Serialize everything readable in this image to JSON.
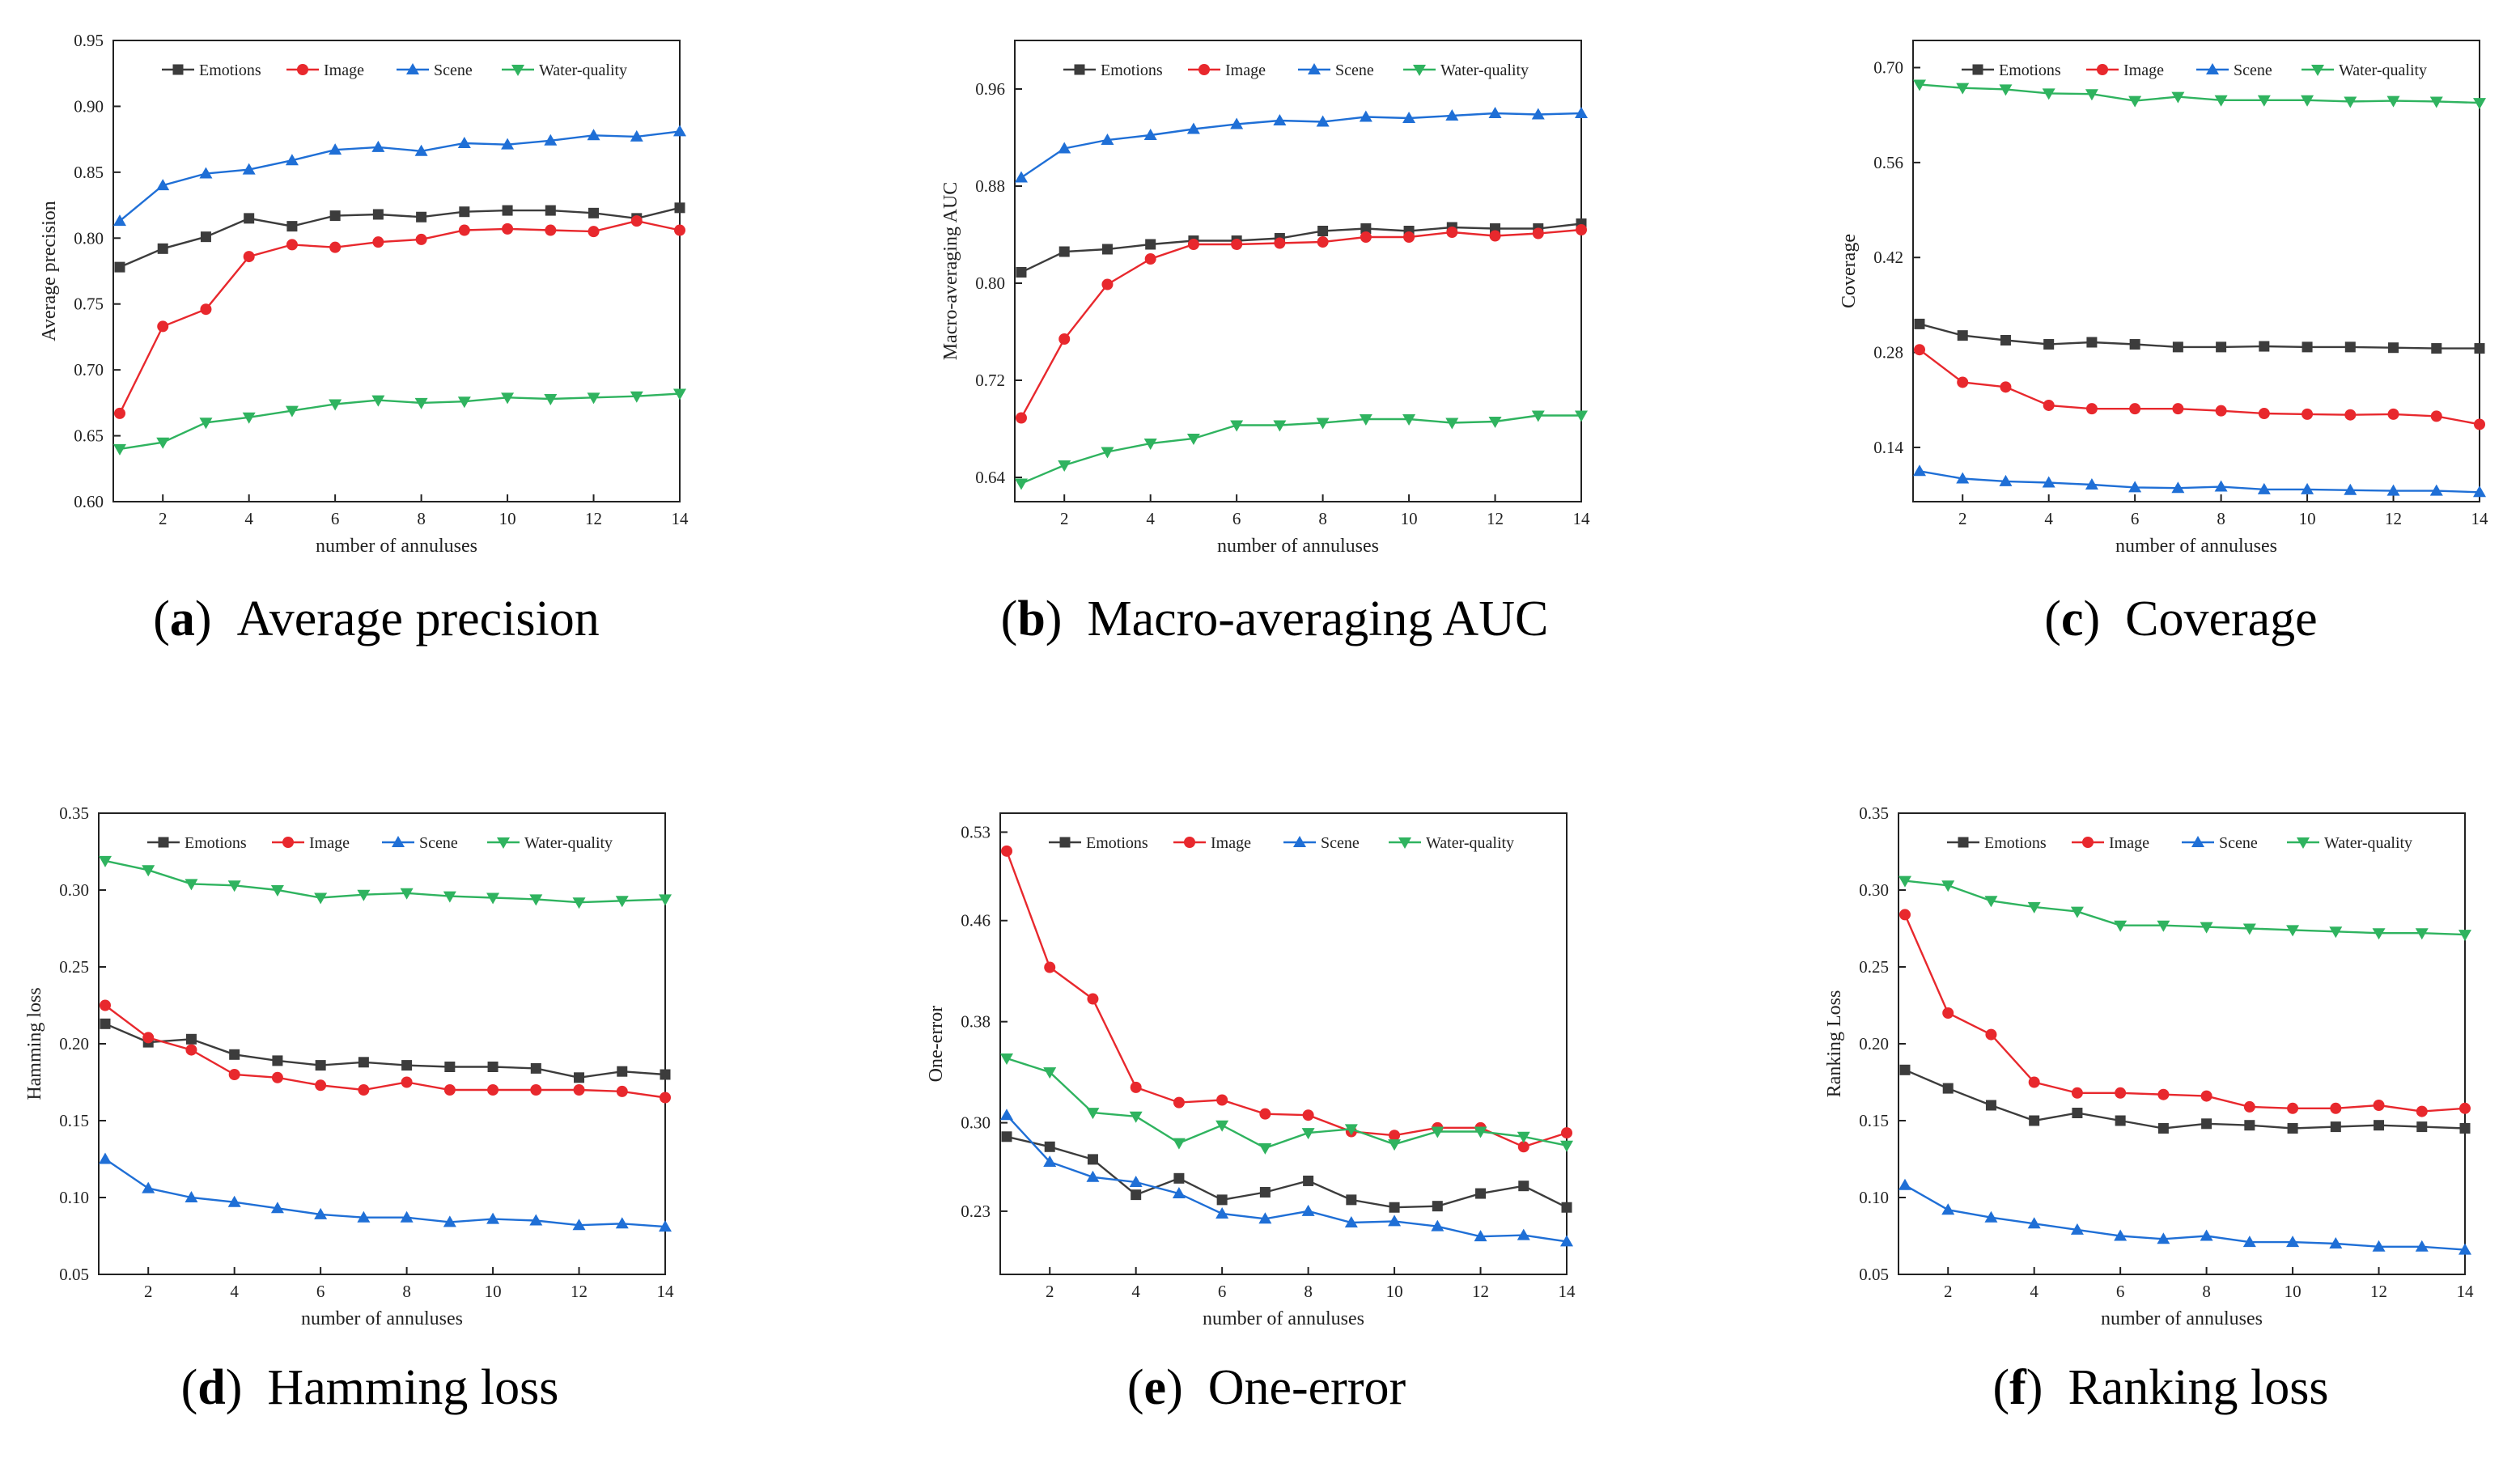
{
  "figure": {
    "series_colors": {
      "Emotions": "#3c3c3c",
      "Image": "#e8282d",
      "Scene": "#1f6fd6",
      "Water-quality": "#2fb35f"
    }
  },
  "chart_data": [
    {
      "type": "line",
      "caption_letter": "a",
      "caption_text": "Average precision",
      "xlabel": "number of annuluses",
      "ylabel": "Average precision",
      "x": [
        1,
        2,
        3,
        4,
        5,
        6,
        7,
        8,
        9,
        10,
        11,
        12,
        13,
        14
      ],
      "xlim": [
        0.85,
        14
      ],
      "xticks": [
        2,
        4,
        6,
        8,
        10,
        12,
        14
      ],
      "ylim": [
        0.6,
        0.95
      ],
      "yticks": [
        0.6,
        0.65,
        0.7,
        0.75,
        0.8,
        0.85,
        0.9,
        0.95
      ],
      "ytick_labels": [
        "0.60",
        "0.65",
        "0.70",
        "0.75",
        "0.80",
        "0.85",
        "0.90",
        "0.95"
      ],
      "series": [
        {
          "name": "Emotions",
          "values": [
            0.778,
            0.792,
            0.801,
            0.815,
            0.809,
            0.817,
            0.818,
            0.816,
            0.82,
            0.821,
            0.821,
            0.819,
            0.815,
            0.823
          ]
        },
        {
          "name": "Image",
          "values": [
            0.667,
            0.733,
            0.746,
            0.786,
            0.795,
            0.793,
            0.797,
            0.799,
            0.806,
            0.807,
            0.806,
            0.805,
            0.813,
            0.806
          ]
        },
        {
          "name": "Scene",
          "values": [
            0.813,
            0.84,
            0.849,
            0.852,
            0.859,
            0.867,
            0.869,
            0.866,
            0.872,
            0.871,
            0.874,
            0.878,
            0.877,
            0.881
          ]
        },
        {
          "name": "Water-quality",
          "values": [
            0.64,
            0.645,
            0.66,
            0.664,
            0.669,
            0.674,
            0.677,
            0.675,
            0.676,
            0.679,
            0.678,
            0.679,
            0.68,
            0.682
          ]
        }
      ]
    },
    {
      "type": "line",
      "caption_letter": "b",
      "caption_text": "Macro-averaging AUC",
      "xlabel": "number of annuluses",
      "ylabel": "Macro-averaging AUC",
      "x": [
        1,
        2,
        3,
        4,
        5,
        6,
        7,
        8,
        9,
        10,
        11,
        12,
        13,
        14
      ],
      "xlim": [
        0.85,
        14
      ],
      "xticks": [
        2,
        4,
        6,
        8,
        10,
        12,
        14
      ],
      "ylim": [
        0.62,
        1.0
      ],
      "yticks": [
        0.64,
        0.72,
        0.8,
        0.88,
        0.96
      ],
      "ytick_labels": [
        "0.64",
        "0.72",
        "0.80",
        "0.88",
        "0.96"
      ],
      "series": [
        {
          "name": "Emotions",
          "values": [
            0.809,
            0.826,
            0.828,
            0.832,
            0.835,
            0.835,
            0.837,
            0.843,
            0.845,
            0.843,
            0.846,
            0.845,
            0.845,
            0.849
          ]
        },
        {
          "name": "Image",
          "values": [
            0.689,
            0.754,
            0.799,
            0.82,
            0.832,
            0.832,
            0.833,
            0.834,
            0.838,
            0.838,
            0.842,
            0.839,
            0.841,
            0.844
          ]
        },
        {
          "name": "Scene",
          "values": [
            0.887,
            0.911,
            0.918,
            0.922,
            0.927,
            0.931,
            0.934,
            0.933,
            0.937,
            0.936,
            0.938,
            0.94,
            0.939,
            0.94
          ]
        },
        {
          "name": "Water-quality",
          "values": [
            0.635,
            0.65,
            0.661,
            0.668,
            0.672,
            0.683,
            0.683,
            0.685,
            0.688,
            0.688,
            0.685,
            0.686,
            0.691,
            0.691
          ]
        }
      ]
    },
    {
      "type": "line",
      "caption_letter": "c",
      "caption_text": "Coverage",
      "xlabel": "number of annuluses",
      "ylabel": "Coverage",
      "x": [
        1,
        2,
        3,
        4,
        5,
        6,
        7,
        8,
        9,
        10,
        11,
        12,
        13,
        14
      ],
      "xlim": [
        0.85,
        14
      ],
      "xticks": [
        2,
        4,
        6,
        8,
        10,
        12,
        14
      ],
      "ylim": [
        0.06,
        0.74
      ],
      "yticks": [
        0.14,
        0.28,
        0.42,
        0.56,
        0.7
      ],
      "ytick_labels": [
        "0.14",
        "0.28",
        "0.42",
        "0.56",
        "0.70"
      ],
      "series": [
        {
          "name": "Emotions",
          "values": [
            0.322,
            0.305,
            0.298,
            0.292,
            0.295,
            0.292,
            0.288,
            0.288,
            0.289,
            0.288,
            0.288,
            0.287,
            0.286,
            0.286
          ]
        },
        {
          "name": "Image",
          "values": [
            0.284,
            0.236,
            0.229,
            0.202,
            0.197,
            0.197,
            0.197,
            0.194,
            0.19,
            0.189,
            0.188,
            0.189,
            0.186,
            0.174
          ]
        },
        {
          "name": "Scene",
          "values": [
            0.105,
            0.094,
            0.09,
            0.088,
            0.085,
            0.081,
            0.08,
            0.082,
            0.078,
            0.078,
            0.077,
            0.076,
            0.076,
            0.074
          ]
        },
        {
          "name": "Water-quality",
          "values": [
            0.675,
            0.67,
            0.668,
            0.662,
            0.661,
            0.651,
            0.657,
            0.652,
            0.652,
            0.652,
            0.65,
            0.651,
            0.65,
            0.648
          ]
        }
      ]
    },
    {
      "type": "line",
      "caption_letter": "d",
      "caption_text": "Hamming loss",
      "xlabel": "number of annuluses",
      "ylabel": "Hamming loss",
      "x": [
        1,
        2,
        3,
        4,
        5,
        6,
        7,
        8,
        9,
        10,
        11,
        12,
        13,
        14
      ],
      "xlim": [
        0.85,
        14
      ],
      "xticks": [
        2,
        4,
        6,
        8,
        10,
        12,
        14
      ],
      "ylim": [
        0.05,
        0.35
      ],
      "yticks": [
        0.05,
        0.1,
        0.15,
        0.2,
        0.25,
        0.3,
        0.35
      ],
      "ytick_labels": [
        "0.05",
        "0.10",
        "0.15",
        "0.20",
        "0.25",
        "0.30",
        "0.35"
      ],
      "series": [
        {
          "name": "Emotions",
          "values": [
            0.213,
            0.201,
            0.203,
            0.193,
            0.189,
            0.186,
            0.188,
            0.186,
            0.185,
            0.185,
            0.184,
            0.178,
            0.182,
            0.18
          ]
        },
        {
          "name": "Image",
          "values": [
            0.225,
            0.204,
            0.196,
            0.18,
            0.178,
            0.173,
            0.17,
            0.175,
            0.17,
            0.17,
            0.17,
            0.17,
            0.169,
            0.165
          ]
        },
        {
          "name": "Scene",
          "values": [
            0.125,
            0.106,
            0.1,
            0.097,
            0.093,
            0.089,
            0.087,
            0.087,
            0.084,
            0.086,
            0.085,
            0.082,
            0.083,
            0.081
          ]
        },
        {
          "name": "Water-quality",
          "values": [
            0.319,
            0.313,
            0.304,
            0.303,
            0.3,
            0.295,
            0.297,
            0.298,
            0.296,
            0.295,
            0.294,
            0.292,
            0.293,
            0.294
          ]
        }
      ]
    },
    {
      "type": "line",
      "caption_letter": "e",
      "caption_text": "One-error",
      "xlabel": "number of annuluses",
      "ylabel": "One-error",
      "x": [
        1,
        2,
        3,
        4,
        5,
        6,
        7,
        8,
        9,
        10,
        11,
        12,
        13,
        14
      ],
      "xlim": [
        0.85,
        14
      ],
      "xticks": [
        2,
        4,
        6,
        8,
        10,
        12,
        14
      ],
      "ylim": [
        0.18,
        0.545
      ],
      "yticks": [
        0.23,
        0.3,
        0.38,
        0.46,
        0.53
      ],
      "ytick_labels": [
        "0.23",
        "0.30",
        "0.38",
        "0.46",
        "0.53"
      ],
      "series": [
        {
          "name": "Emotions",
          "values": [
            0.289,
            0.281,
            0.271,
            0.243,
            0.256,
            0.239,
            0.245,
            0.254,
            0.239,
            0.233,
            0.234,
            0.244,
            0.25,
            0.233
          ]
        },
        {
          "name": "Image",
          "values": [
            0.515,
            0.423,
            0.398,
            0.328,
            0.316,
            0.318,
            0.307,
            0.306,
            0.293,
            0.29,
            0.296,
            0.296,
            0.281,
            0.292
          ]
        },
        {
          "name": "Scene",
          "values": [
            0.306,
            0.269,
            0.257,
            0.253,
            0.244,
            0.228,
            0.224,
            0.23,
            0.221,
            0.222,
            0.218,
            0.21,
            0.211,
            0.206
          ]
        },
        {
          "name": "Water-quality",
          "values": [
            0.351,
            0.34,
            0.308,
            0.305,
            0.284,
            0.298,
            0.28,
            0.292,
            0.295,
            0.283,
            0.293,
            0.293,
            0.289,
            0.282
          ]
        }
      ]
    },
    {
      "type": "line",
      "caption_letter": "f",
      "caption_text": "Ranking loss",
      "xlabel": "number of annuluses",
      "ylabel": "Ranking Loss",
      "x": [
        1,
        2,
        3,
        4,
        5,
        6,
        7,
        8,
        9,
        10,
        11,
        12,
        13,
        14
      ],
      "xlim": [
        0.85,
        14
      ],
      "xticks": [
        2,
        4,
        6,
        8,
        10,
        12,
        14
      ],
      "ylim": [
        0.05,
        0.35
      ],
      "yticks": [
        0.05,
        0.1,
        0.15,
        0.2,
        0.25,
        0.3,
        0.35
      ],
      "ytick_labels": [
        "0.05",
        "0.10",
        "0.15",
        "0.20",
        "0.25",
        "0.30",
        "0.35"
      ],
      "series": [
        {
          "name": "Emotions",
          "values": [
            0.183,
            0.171,
            0.16,
            0.15,
            0.155,
            0.15,
            0.145,
            0.148,
            0.147,
            0.145,
            0.146,
            0.147,
            0.146,
            0.145
          ]
        },
        {
          "name": "Image",
          "values": [
            0.284,
            0.22,
            0.206,
            0.175,
            0.168,
            0.168,
            0.167,
            0.166,
            0.159,
            0.158,
            0.158,
            0.16,
            0.156,
            0.158
          ]
        },
        {
          "name": "Scene",
          "values": [
            0.108,
            0.092,
            0.087,
            0.083,
            0.079,
            0.075,
            0.073,
            0.075,
            0.071,
            0.071,
            0.07,
            0.068,
            0.068,
            0.066
          ]
        },
        {
          "name": "Water-quality",
          "values": [
            0.306,
            0.303,
            0.293,
            0.289,
            0.286,
            0.277,
            0.277,
            0.276,
            0.275,
            0.274,
            0.273,
            0.272,
            0.272,
            0.271
          ]
        }
      ]
    }
  ]
}
